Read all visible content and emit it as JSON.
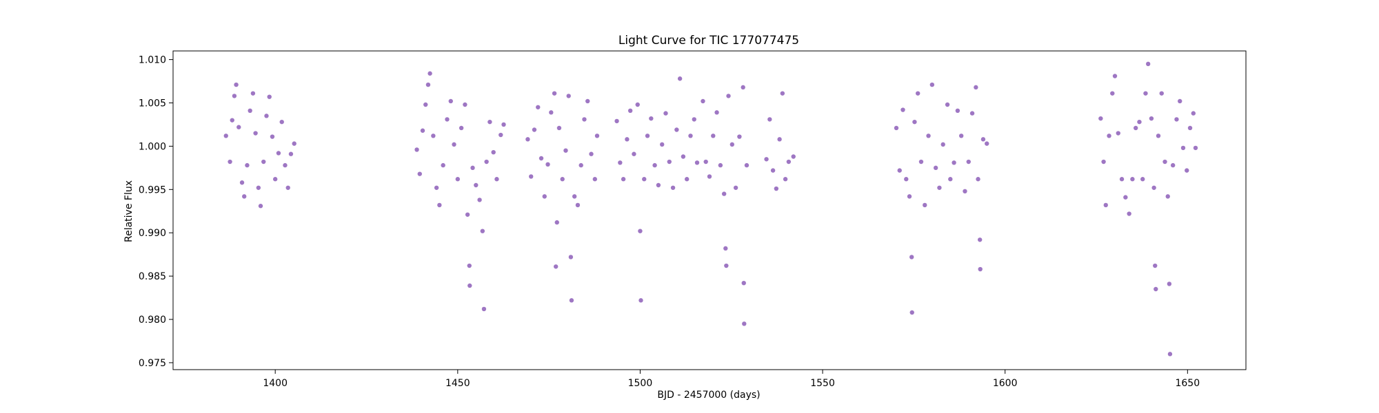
{
  "chart_data": {
    "type": "scatter",
    "title": "Light Curve for TIC 177077475",
    "xlabel": "BJD - 2457000 (days)",
    "ylabel": "Relative Flux",
    "xlim": [
      1372,
      1666
    ],
    "ylim": [
      0.9742,
      1.011
    ],
    "x_ticks": [
      1400,
      1450,
      1500,
      1550,
      1600,
      1650
    ],
    "y_ticks": [
      0.975,
      0.98,
      0.985,
      0.99,
      0.995,
      1.0,
      1.005,
      1.01
    ],
    "x_tick_labels": [
      "1400",
      "1450",
      "1500",
      "1550",
      "1600",
      "1650"
    ],
    "y_tick_labels": [
      "0.975",
      "0.980",
      "0.985",
      "0.990",
      "0.995",
      "1.000",
      "1.005",
      "1.010"
    ],
    "grid": false,
    "marker_color": "#9467bd",
    "series": [
      {
        "values": [
          [
            1386.5,
            1.0012
          ],
          [
            1387.6,
            0.9982
          ],
          [
            1388.2,
            1.003
          ],
          [
            1388.8,
            1.0058
          ],
          [
            1389.3,
            1.0071
          ],
          [
            1390.0,
            1.0022
          ],
          [
            1390.9,
            0.9958
          ],
          [
            1391.5,
            0.9942
          ],
          [
            1392.3,
            0.9978
          ],
          [
            1393.1,
            1.0041
          ],
          [
            1393.9,
            1.0061
          ],
          [
            1394.6,
            1.0015
          ],
          [
            1395.4,
            0.9952
          ],
          [
            1396.0,
            0.9931
          ],
          [
            1396.8,
            0.9982
          ],
          [
            1397.6,
            1.0035
          ],
          [
            1398.4,
            1.0057
          ],
          [
            1399.2,
            1.0011
          ],
          [
            1400.0,
            0.9962
          ],
          [
            1400.9,
            0.9992
          ],
          [
            1401.8,
            1.0028
          ],
          [
            1402.7,
            0.9978
          ],
          [
            1403.5,
            0.9952
          ],
          [
            1404.3,
            0.9991
          ],
          [
            1405.2,
            1.0003
          ],
          [
            1438.8,
            0.9996
          ],
          [
            1439.6,
            0.9968
          ],
          [
            1440.4,
            1.0018
          ],
          [
            1441.2,
            1.0048
          ],
          [
            1441.9,
            1.0071
          ],
          [
            1442.4,
            1.0084
          ],
          [
            1443.3,
            1.0012
          ],
          [
            1444.2,
            0.9952
          ],
          [
            1445.0,
            0.9932
          ],
          [
            1446.0,
            0.9978
          ],
          [
            1447.1,
            1.0031
          ],
          [
            1448.1,
            1.0052
          ],
          [
            1449.0,
            1.0002
          ],
          [
            1450.0,
            0.9962
          ],
          [
            1451.0,
            1.0021
          ],
          [
            1452.0,
            1.0048
          ],
          [
            1452.7,
            0.9921
          ],
          [
            1453.2,
            0.9862
          ],
          [
            1453.3,
            0.9839
          ],
          [
            1454.1,
            0.9975
          ],
          [
            1455.0,
            0.9955
          ],
          [
            1456.0,
            0.9938
          ],
          [
            1456.8,
            0.9902
          ],
          [
            1457.2,
            0.9812
          ],
          [
            1457.9,
            0.9982
          ],
          [
            1458.8,
            1.0028
          ],
          [
            1459.8,
            0.9993
          ],
          [
            1460.7,
            0.9962
          ],
          [
            1461.8,
            1.0013
          ],
          [
            1462.6,
            1.0025
          ],
          [
            1469.2,
            1.0008
          ],
          [
            1470.1,
            0.9965
          ],
          [
            1471.0,
            1.0019
          ],
          [
            1472.0,
            1.0045
          ],
          [
            1472.9,
            0.9986
          ],
          [
            1473.8,
            0.9942
          ],
          [
            1474.7,
            0.9979
          ],
          [
            1475.6,
            1.0039
          ],
          [
            1476.5,
            1.0061
          ],
          [
            1476.9,
            0.9861
          ],
          [
            1477.2,
            0.9912
          ],
          [
            1477.8,
            1.0021
          ],
          [
            1478.7,
            0.9962
          ],
          [
            1479.6,
            0.9995
          ],
          [
            1480.4,
            1.0058
          ],
          [
            1481.0,
            0.9872
          ],
          [
            1481.2,
            0.9822
          ],
          [
            1482.0,
            0.9942
          ],
          [
            1482.9,
            0.9932
          ],
          [
            1483.8,
            0.9978
          ],
          [
            1484.7,
            1.0031
          ],
          [
            1485.6,
            1.0052
          ],
          [
            1486.6,
            0.9991
          ],
          [
            1487.6,
            0.9962
          ],
          [
            1488.2,
            1.0012
          ],
          [
            1493.6,
            1.0029
          ],
          [
            1494.5,
            0.9981
          ],
          [
            1495.4,
            0.9962
          ],
          [
            1496.4,
            1.0008
          ],
          [
            1497.3,
            1.0041
          ],
          [
            1498.3,
            0.9991
          ],
          [
            1499.3,
            1.0048
          ],
          [
            1500.0,
            0.9902
          ],
          [
            1500.2,
            0.9822
          ],
          [
            1501.1,
            0.9962
          ],
          [
            1502.0,
            1.0012
          ],
          [
            1503.0,
            1.0032
          ],
          [
            1504.0,
            0.9978
          ],
          [
            1505.0,
            0.9955
          ],
          [
            1506.0,
            1.0002
          ],
          [
            1507.0,
            1.0038
          ],
          [
            1508.0,
            0.9982
          ],
          [
            1509.0,
            0.9952
          ],
          [
            1510.0,
            1.0019
          ],
          [
            1510.9,
            1.0078
          ],
          [
            1511.8,
            0.9988
          ],
          [
            1512.8,
            0.9962
          ],
          [
            1513.8,
            1.0012
          ],
          [
            1514.8,
            1.0031
          ],
          [
            1515.6,
            0.9981
          ],
          [
            1517.2,
            1.0052
          ],
          [
            1518.0,
            0.9982
          ],
          [
            1519.0,
            0.9965
          ],
          [
            1520.0,
            1.0012
          ],
          [
            1521.0,
            1.0039
          ],
          [
            1522.0,
            0.9978
          ],
          [
            1523.0,
            0.9945
          ],
          [
            1523.4,
            0.9882
          ],
          [
            1523.6,
            0.9862
          ],
          [
            1524.2,
            1.0058
          ],
          [
            1525.2,
            1.0002
          ],
          [
            1526.2,
            0.9952
          ],
          [
            1527.2,
            1.0011
          ],
          [
            1528.2,
            1.0068
          ],
          [
            1528.4,
            0.9842
          ],
          [
            1528.5,
            0.9795
          ],
          [
            1529.2,
            0.9978
          ],
          [
            1534.6,
            0.9985
          ],
          [
            1535.5,
            1.0031
          ],
          [
            1536.4,
            0.9972
          ],
          [
            1537.3,
            0.9951
          ],
          [
            1538.2,
            1.0008
          ],
          [
            1539.0,
            1.0061
          ],
          [
            1539.8,
            0.9962
          ],
          [
            1540.7,
            0.9982
          ],
          [
            1542.0,
            0.9988
          ],
          [
            1570.2,
            1.0021
          ],
          [
            1571.1,
            0.9972
          ],
          [
            1572.0,
            1.0042
          ],
          [
            1572.9,
            0.9962
          ],
          [
            1573.8,
            0.9942
          ],
          [
            1574.4,
            0.9872
          ],
          [
            1574.5,
            0.9808
          ],
          [
            1575.2,
            1.0028
          ],
          [
            1576.1,
            1.0061
          ],
          [
            1577.0,
            0.9982
          ],
          [
            1578.0,
            0.9932
          ],
          [
            1579.0,
            1.0012
          ],
          [
            1580.0,
            1.0071
          ],
          [
            1581.0,
            0.9975
          ],
          [
            1582.0,
            0.9952
          ],
          [
            1583.0,
            1.0002
          ],
          [
            1584.2,
            1.0048
          ],
          [
            1585.0,
            0.9962
          ],
          [
            1586.0,
            0.9981
          ],
          [
            1587.0,
            1.0041
          ],
          [
            1588.0,
            1.0012
          ],
          [
            1589.0,
            0.9948
          ],
          [
            1590.0,
            0.9982
          ],
          [
            1591.0,
            1.0038
          ],
          [
            1592.0,
            1.0068
          ],
          [
            1592.6,
            0.9962
          ],
          [
            1593.1,
            0.9892
          ],
          [
            1593.2,
            0.9858
          ],
          [
            1594.0,
            1.0008
          ],
          [
            1595.0,
            1.0003
          ],
          [
            1626.2,
            1.0032
          ],
          [
            1627.0,
            0.9982
          ],
          [
            1627.6,
            0.9932
          ],
          [
            1628.5,
            1.0012
          ],
          [
            1629.4,
            1.0061
          ],
          [
            1630.1,
            1.0081
          ],
          [
            1631.0,
            1.0015
          ],
          [
            1632.0,
            0.9962
          ],
          [
            1633.0,
            0.9941
          ],
          [
            1634.0,
            0.9922
          ],
          [
            1634.9,
            0.9962
          ],
          [
            1635.8,
            1.0021
          ],
          [
            1636.8,
            1.0028
          ],
          [
            1637.7,
            0.9962
          ],
          [
            1638.5,
            1.0061
          ],
          [
            1639.2,
            1.0095
          ],
          [
            1640.1,
            1.0032
          ],
          [
            1640.8,
            0.9952
          ],
          [
            1641.1,
            0.9862
          ],
          [
            1641.3,
            0.9835
          ],
          [
            1642.0,
            1.0012
          ],
          [
            1642.9,
            1.0061
          ],
          [
            1643.8,
            0.9982
          ],
          [
            1644.6,
            0.9942
          ],
          [
            1645.0,
            0.9841
          ],
          [
            1645.2,
            0.976
          ],
          [
            1646.0,
            0.9978
          ],
          [
            1647.0,
            1.0031
          ],
          [
            1647.9,
            1.0052
          ],
          [
            1648.8,
            0.9998
          ],
          [
            1649.8,
            0.9972
          ],
          [
            1650.7,
            1.0021
          ],
          [
            1651.6,
            1.0038
          ],
          [
            1652.2,
            0.9998
          ]
        ]
      }
    ]
  }
}
